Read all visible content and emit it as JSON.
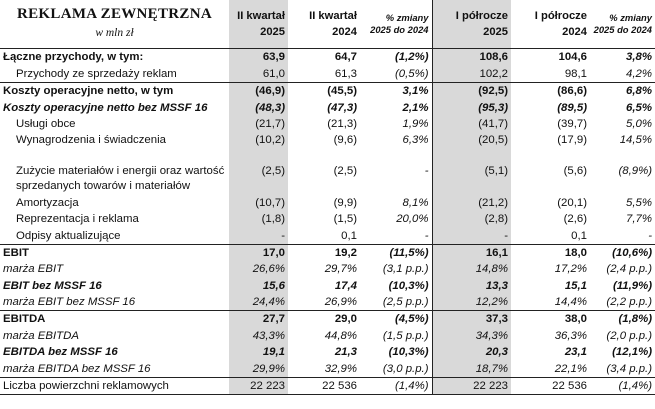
{
  "header": {
    "title": "REKLAMA ZEWNĘTRZNA",
    "subtitle": "w mln zł",
    "columns": [
      {
        "line1": "II kwartał",
        "line2": "2025"
      },
      {
        "line1": "II kwartał",
        "line2": "2024"
      },
      {
        "line1": "% zmiany",
        "line2": "2025 do 2024"
      },
      {
        "line1": "I półrocze",
        "line2": "2025"
      },
      {
        "line1": "I półrocze",
        "line2": "2024"
      },
      {
        "line1": "% zmiany",
        "line2": "2025 do 2024"
      }
    ]
  },
  "rows": [
    {
      "label": "Łączne przychody, w tym:",
      "values": [
        "63,9",
        "64,7",
        "(1,2%)",
        "108,6",
        "104,6",
        "3,8%"
      ]
    },
    {
      "label": "Przychody ze sprzedaży reklam",
      "values": [
        "61,0",
        "61,3",
        "(0,5%)",
        "102,2",
        "98,1",
        "4,2%"
      ]
    },
    {
      "label": "Koszty operacyjne netto, w tym",
      "values": [
        "(46,9)",
        "(45,5)",
        "3,1%",
        "(92,5)",
        "(86,6)",
        "6,8%"
      ]
    },
    {
      "label": "Koszty operacyjne netto bez MSSF 16",
      "values": [
        "(48,3)",
        "(47,3)",
        "2,1%",
        "(95,3)",
        "(89,5)",
        "6,5%"
      ]
    },
    {
      "label": "Usługi obce",
      "values": [
        "(21,7)",
        "(21,3)",
        "1,9%",
        "(41,7)",
        "(39,7)",
        "5,0%"
      ]
    },
    {
      "label": "Wynagrodzenia i świadczenia",
      "values": [
        "(10,2)",
        "(9,6)",
        "6,3%",
        "(20,5)",
        "(17,9)",
        "14,5%"
      ]
    },
    {
      "label": "Zużycie materiałów i energii oraz wartość sprzedanych towarów i materiałów",
      "values": [
        "(2,5)",
        "(2,5)",
        "-",
        "(5,1)",
        "(5,6)",
        "(8,9%)"
      ]
    },
    {
      "label": "Amortyzacja",
      "values": [
        "(10,7)",
        "(9,9)",
        "8,1%",
        "(21,2)",
        "(20,1)",
        "5,5%"
      ]
    },
    {
      "label": "Reprezentacja i reklama",
      "values": [
        "(1,8)",
        "(1,5)",
        "20,0%",
        "(2,8)",
        "(2,6)",
        "7,7%"
      ]
    },
    {
      "label": "Odpisy aktualizujące",
      "values": [
        "-",
        "0,1",
        "-",
        "-",
        "0,1",
        "-"
      ]
    },
    {
      "label": "EBIT",
      "values": [
        "17,0",
        "19,2",
        "(11,5%)",
        "16,1",
        "18,0",
        "(10,6%)"
      ]
    },
    {
      "label": "marża EBIT",
      "values": [
        "26,6%",
        "29,7%",
        "(3,1 p.p.)",
        "14,8%",
        "17,2%",
        "(2,4 p.p.)"
      ]
    },
    {
      "label": "EBIT bez MSSF 16",
      "values": [
        "15,6",
        "17,4",
        "(10,3%)",
        "13,3",
        "15,1",
        "(11,9%)"
      ]
    },
    {
      "label": "marża EBIT bez MSSF 16",
      "values": [
        "24,4%",
        "26,9%",
        "(2,5 p.p.)",
        "12,2%",
        "14,4%",
        "(2,2 p.p.)"
      ]
    },
    {
      "label": "EBITDA",
      "values": [
        "27,7",
        "29,0",
        "(4,5%)",
        "37,3",
        "38,0",
        "(1,8%)"
      ]
    },
    {
      "label": "marża EBITDA",
      "values": [
        "43,3%",
        "44,8%",
        "(1,5 p.p.)",
        "34,3%",
        "36,3%",
        "(2,0 p.p.)"
      ]
    },
    {
      "label": "EBITDA bez MSSF 16",
      "values": [
        "19,1",
        "21,3",
        "(10,3%)",
        "20,3",
        "23,1",
        "(12,1%)"
      ]
    },
    {
      "label": "marża EBITDA bez MSSF 16",
      "values": [
        "29,9%",
        "32,9%",
        "(3,0 p.p.)",
        "18,7%",
        "22,1%",
        "(3,4 p.p.)"
      ]
    },
    {
      "label": "Liczba powierzchni reklamowych",
      "values": [
        "22 223",
        "22 536",
        "(1,4%)",
        "22 223",
        "22 536",
        "(1,4%)"
      ]
    }
  ]
}
